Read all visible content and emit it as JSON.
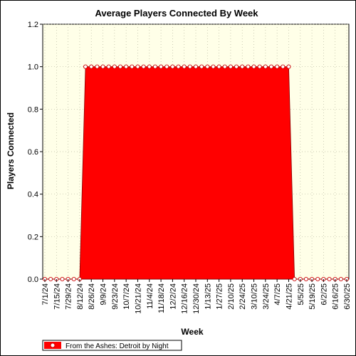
{
  "chart_data": {
    "type": "area",
    "title": "Average Players Connected By Week",
    "xlabel": "Week",
    "ylabel": "Players Connected",
    "ylim": [
      0,
      1.2
    ],
    "yticks": [
      "0.0",
      "0.2",
      "0.4",
      "0.6",
      "0.8",
      "1.0",
      "1.2"
    ],
    "grid": true,
    "legend_placement": "bottom-left",
    "x_tick_labels": [
      "7/1/24",
      "7/15/24",
      "7/29/24",
      "8/12/24",
      "8/26/24",
      "9/9/24",
      "9/23/24",
      "10/7/24",
      "10/21/24",
      "11/4/24",
      "11/18/24",
      "12/2/24",
      "12/16/24",
      "12/30/24",
      "1/13/25",
      "1/27/25",
      "2/10/25",
      "2/24/25",
      "3/10/25",
      "3/24/25",
      "4/7/25",
      "4/21/25",
      "5/5/25",
      "5/19/25",
      "6/2/25",
      "6/16/25",
      "6/30/25"
    ],
    "x_tick_weeks": [
      0,
      2,
      4,
      6,
      8,
      10,
      12,
      14,
      16,
      18,
      20,
      22,
      24,
      26,
      28,
      30,
      32,
      34,
      36,
      38,
      40,
      42,
      44,
      46,
      48,
      50,
      52
    ],
    "series": [
      {
        "name": "From the Ashes: Detroit by Night",
        "color": "#ff0000",
        "values": [
          0,
          0,
          0,
          0,
          0,
          0,
          0,
          1,
          1,
          1,
          1,
          1,
          1,
          1,
          1,
          1,
          1,
          1,
          1,
          1,
          1,
          1,
          1,
          1,
          1,
          1,
          1,
          1,
          1,
          1,
          1,
          1,
          1,
          1,
          1,
          1,
          1,
          1,
          1,
          1,
          1,
          1,
          1,
          0,
          0,
          0,
          0,
          0,
          0,
          0,
          0,
          0,
          0
        ]
      }
    ],
    "colors": {
      "plot_bg": "#ffffe8",
      "fill": "#ff0000",
      "marker_fill": "#ffffff",
      "marker_stroke": "#cc0000"
    }
  }
}
